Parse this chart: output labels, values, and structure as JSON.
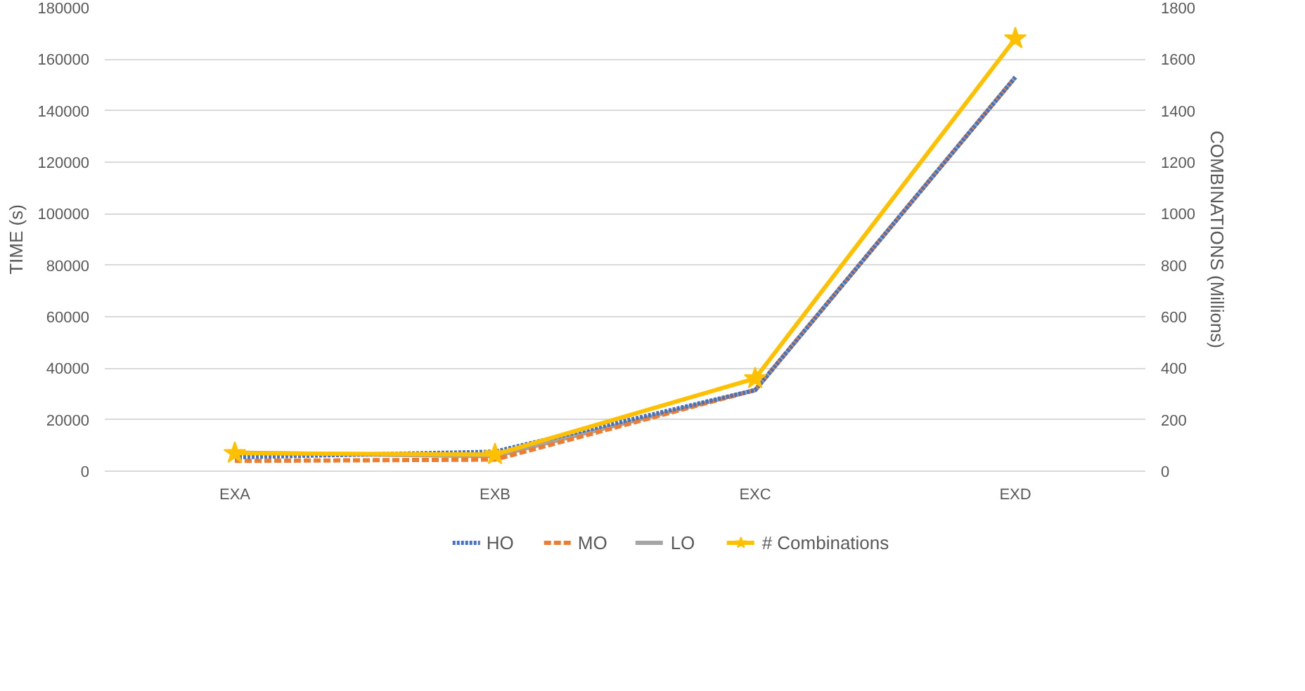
{
  "chart_data": {
    "type": "line",
    "ylabel": "TIME (s)",
    "y2label": "COMBINATIONS (Millions)",
    "categories": [
      "EXA",
      "EXB",
      "EXC",
      "EXD"
    ],
    "series": [
      {
        "name": "HO",
        "color": "#4472c4",
        "values": [
          5400,
          7600,
          31500,
          153000
        ],
        "line_style": "dotted"
      },
      {
        "name": "MO",
        "color": "#ed7d31",
        "values": [
          4000,
          4500,
          31500,
          153000
        ],
        "line_style": "dashed"
      },
      {
        "name": "LO",
        "color": "#a5a5a5",
        "values": [
          7200,
          5800,
          31500,
          153000
        ],
        "line_style": "solid"
      },
      {
        "name": "# Combinations",
        "color": "#ffc000",
        "values": [
          70,
          65,
          360,
          1680
        ],
        "axis": "y2",
        "marker": "star",
        "line_style": "solid"
      }
    ],
    "ylim": [
      0,
      180000
    ],
    "yticks": [
      0,
      20000,
      40000,
      60000,
      80000,
      100000,
      120000,
      140000,
      160000,
      180000
    ],
    "y2lim": [
      0,
      1800
    ],
    "y2ticks": [
      0,
      200,
      400,
      600,
      800,
      1000,
      1200,
      1400,
      1600,
      1800
    ],
    "grid": "y",
    "legend": "bottom"
  }
}
